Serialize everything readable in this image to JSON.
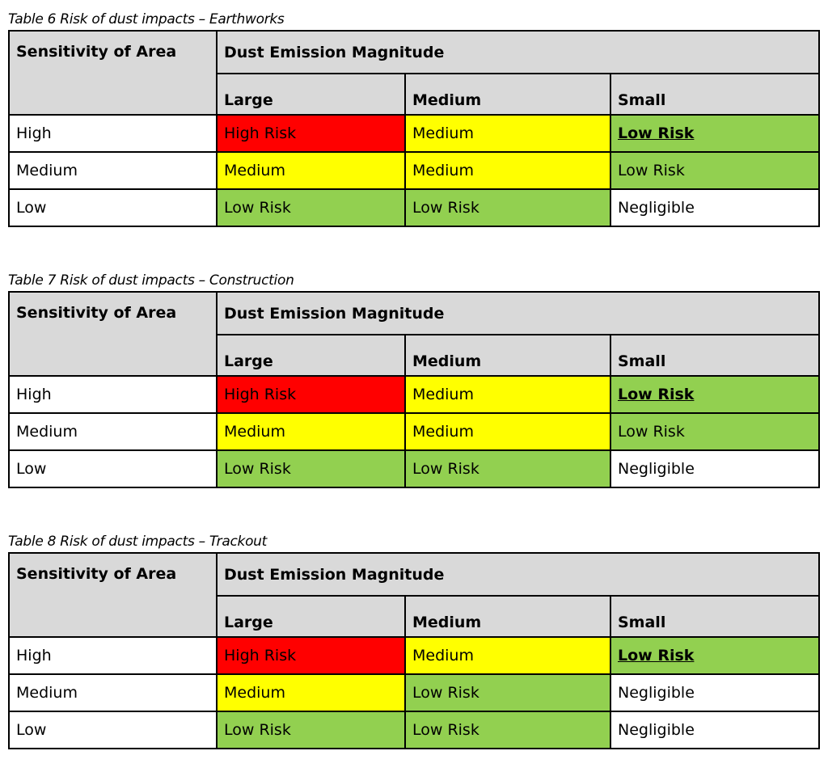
{
  "tables": [
    {
      "caption": "Table 6 Risk of dust impacts – Earthworks",
      "row_header": "Sensitivity of Area",
      "group_header": "Dust Emission Magnitude",
      "columns": [
        "Large",
        "Medium",
        "Small"
      ],
      "rows": [
        {
          "label": "High",
          "cells": [
            "High Risk",
            "Medium",
            "Low Risk"
          ],
          "colors": [
            "#ff0000",
            "#ffff00",
            "#92d050"
          ]
        },
        {
          "label": "Medium",
          "cells": [
            "Medium",
            "Medium",
            "Low Risk"
          ],
          "colors": [
            "#ffff00",
            "#ffff00",
            "#92d050"
          ]
        },
        {
          "label": "Low",
          "cells": [
            "Low Risk",
            "Low Risk",
            "Negligible"
          ],
          "colors": [
            "#92d050",
            "#92d050",
            "#ffffff"
          ]
        }
      ]
    },
    {
      "caption": "Table 7 Risk of dust impacts – Construction",
      "row_header": "Sensitivity of Area",
      "group_header": "Dust Emission Magnitude",
      "columns": [
        "Large",
        "Medium",
        "Small"
      ],
      "rows": [
        {
          "label": "High",
          "cells": [
            "High Risk",
            "Medium",
            "Low Risk"
          ],
          "colors": [
            "#ff0000",
            "#ffff00",
            "#92d050"
          ]
        },
        {
          "label": "Medium",
          "cells": [
            "Medium",
            "Medium",
            "Low Risk"
          ],
          "colors": [
            "#ffff00",
            "#ffff00",
            "#92d050"
          ]
        },
        {
          "label": "Low",
          "cells": [
            "Low Risk",
            "Low Risk",
            "Negligible"
          ],
          "colors": [
            "#92d050",
            "#92d050",
            "#ffffff"
          ]
        }
      ]
    },
    {
      "caption": "Table 8 Risk of dust impacts – Trackout",
      "row_header": "Sensitivity of Area",
      "group_header": "Dust Emission Magnitude",
      "columns": [
        "Large",
        "Medium",
        "Small"
      ],
      "rows": [
        {
          "label": "High",
          "cells": [
            "High Risk",
            "Medium",
            "Low Risk"
          ],
          "colors": [
            "#ff0000",
            "#ffff00",
            "#92d050"
          ]
        },
        {
          "label": "Medium",
          "cells": [
            "Medium",
            "Low Risk",
            "Negligible"
          ],
          "colors": [
            "#ffff00",
            "#92d050",
            "#ffffff"
          ]
        },
        {
          "label": "Low",
          "cells": [
            "Low Risk",
            "Low Risk",
            "Negligible"
          ],
          "colors": [
            "#92d050",
            "#92d050",
            "#ffffff"
          ]
        }
      ]
    }
  ]
}
